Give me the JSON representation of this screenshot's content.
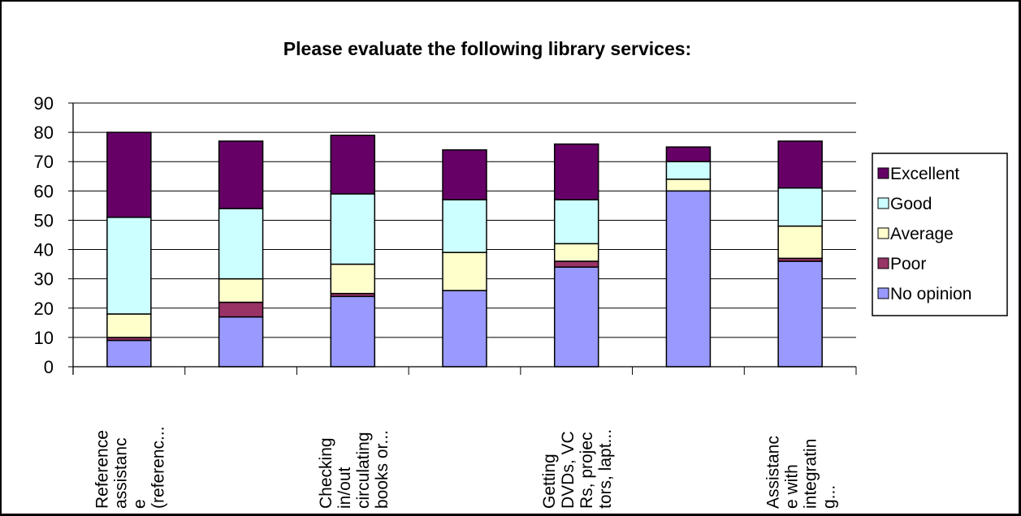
{
  "chart_data": {
    "type": "bar",
    "stacked": true,
    "title": "Please evaluate the following library services:",
    "xlabel": "",
    "ylabel": "",
    "ylim": [
      0,
      90
    ],
    "yticks": [
      0,
      10,
      20,
      30,
      40,
      50,
      60,
      70,
      80,
      90
    ],
    "grid": true,
    "legend_position": "right",
    "categories": [
      [
        "Reference",
        "assistanc",
        "e",
        "(referenc..."
      ],
      [],
      [
        "Checking",
        "in/out",
        "circulating",
        "books or..."
      ],
      [],
      [
        "Getting",
        "DVDs, VC",
        "Rs, projec",
        "tors, lapt..."
      ],
      [],
      [
        "Assistanc",
        "e with",
        "integratin",
        "g..."
      ]
    ],
    "series": [
      {
        "name": "No opinion",
        "color": "#9999ff",
        "values": [
          9,
          17,
          24,
          26,
          34,
          60,
          36
        ]
      },
      {
        "name": "Poor",
        "color": "#993366",
        "values": [
          1,
          5,
          1,
          0,
          2,
          0,
          1
        ]
      },
      {
        "name": "Average",
        "color": "#ffffcc",
        "values": [
          8,
          8,
          10,
          13,
          6,
          4,
          11
        ]
      },
      {
        "name": "Good",
        "color": "#ccffff",
        "values": [
          33,
          24,
          24,
          18,
          15,
          6,
          13
        ]
      },
      {
        "name": "Excellent",
        "color": "#660066",
        "values": [
          29,
          23,
          20,
          17,
          19,
          5,
          16
        ]
      }
    ],
    "legend_order": [
      "Excellent",
      "Good",
      "Average",
      "Poor",
      "No opinion"
    ]
  }
}
